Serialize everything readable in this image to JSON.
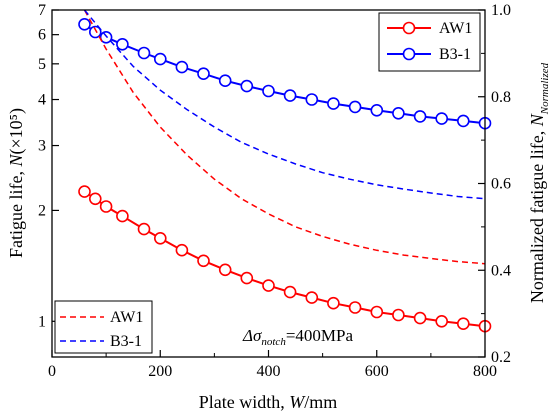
{
  "chart_data": {
    "type": "line",
    "xlabel": {
      "prefix": "Plate width, ",
      "var": "W",
      "suffix": "/mm"
    },
    "ylabel_left": {
      "prefix": "Fatigue life, ",
      "var": "N",
      "suffix": "(×10⁵)"
    },
    "ylabel_right": {
      "prefix": "Normalized fatigue life, ",
      "var": "N",
      "sub": "Normalized"
    },
    "xlim": [
      0,
      800
    ],
    "ylim_left": [
      0.8,
      7
    ],
    "left_scale": "log",
    "ylim_right": [
      0.2,
      1.0
    ],
    "xticks": [
      0,
      200,
      400,
      600,
      800
    ],
    "yticks_left": [
      1,
      2,
      3,
      4,
      5,
      6,
      7
    ],
    "yticks_right": [
      0.2,
      0.4,
      0.6,
      0.8,
      1.0
    ],
    "xtick_labels": [
      "0",
      "200",
      "400",
      "600",
      "800"
    ],
    "ytick_left_labels": [
      "1",
      "2",
      "3",
      "4",
      "5",
      "6",
      "7"
    ],
    "ytick_right_labels": [
      "0.2",
      "0.4",
      "0.6",
      "0.8",
      "1.0"
    ],
    "grid": false,
    "annotation": {
      "prefix": "Δσ",
      "sub": "notch",
      "suffix": "=400MPa"
    },
    "legend_markers": {
      "position": "top-right",
      "entries": [
        "AW1",
        "B3-1"
      ]
    },
    "legend_dashed": {
      "position": "bottom-left",
      "entries": [
        "AW1",
        "B3-1"
      ]
    },
    "series": [
      {
        "name": "AW1",
        "axis": "left",
        "style": "solid-circle",
        "color": "#ff0000",
        "x": [
          60,
          80,
          100,
          130,
          170,
          200,
          240,
          280,
          320,
          360,
          400,
          440,
          480,
          520,
          560,
          600,
          640,
          680,
          720,
          760,
          800
        ],
        "y": [
          2.25,
          2.15,
          2.05,
          1.93,
          1.78,
          1.68,
          1.56,
          1.46,
          1.38,
          1.31,
          1.25,
          1.2,
          1.16,
          1.12,
          1.09,
          1.06,
          1.04,
          1.02,
          1.0,
          0.985,
          0.97
        ]
      },
      {
        "name": "B3-1",
        "axis": "left",
        "style": "solid-circle",
        "color": "#0000ff",
        "x": [
          60,
          80,
          100,
          130,
          170,
          200,
          240,
          280,
          320,
          360,
          400,
          440,
          480,
          520,
          560,
          600,
          640,
          680,
          720,
          760,
          800
        ],
        "y": [
          6.4,
          6.1,
          5.9,
          5.65,
          5.35,
          5.15,
          4.9,
          4.7,
          4.5,
          4.35,
          4.22,
          4.1,
          4.0,
          3.9,
          3.82,
          3.74,
          3.67,
          3.6,
          3.55,
          3.5,
          3.45
        ]
      },
      {
        "name": "AW1",
        "axis": "right",
        "style": "dashed",
        "color": "#ff0000",
        "x": [
          60,
          100,
          150,
          200,
          250,
          300,
          350,
          400,
          450,
          500,
          550,
          600,
          650,
          700,
          750,
          800
        ],
        "y": [
          1.0,
          0.91,
          0.81,
          0.73,
          0.665,
          0.61,
          0.565,
          0.53,
          0.5,
          0.478,
          0.46,
          0.446,
          0.435,
          0.427,
          0.42,
          0.415
        ]
      },
      {
        "name": "B3-1",
        "axis": "right",
        "style": "dashed",
        "color": "#0000ff",
        "x": [
          60,
          100,
          150,
          200,
          250,
          300,
          350,
          400,
          450,
          500,
          550,
          600,
          650,
          700,
          750,
          800
        ],
        "y": [
          1.0,
          0.94,
          0.87,
          0.815,
          0.77,
          0.73,
          0.695,
          0.668,
          0.645,
          0.625,
          0.61,
          0.597,
          0.587,
          0.578,
          0.57,
          0.565
        ]
      }
    ]
  }
}
